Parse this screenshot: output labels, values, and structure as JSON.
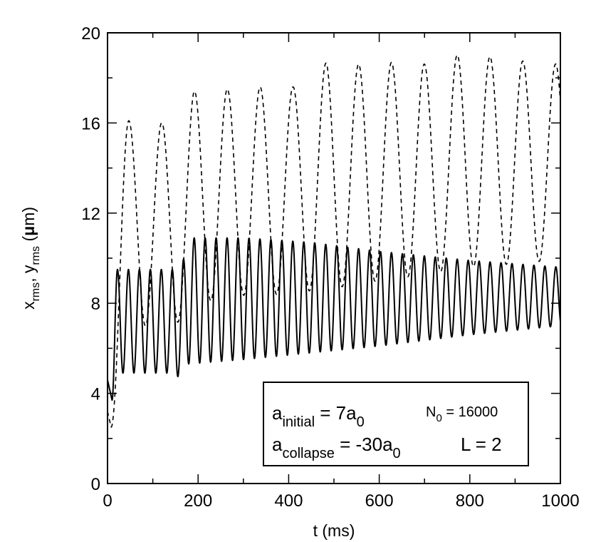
{
  "chart_data": {
    "type": "line",
    "title": "",
    "xlabel": "t (ms)",
    "ylabel": {
      "x": "x",
      "x_sub": "rms",
      "sep": ", ",
      "y": "y",
      "y_sub": "rms",
      "unit_open": " (",
      "mu": "μ",
      "unit_rest": "m)"
    },
    "xlim": [
      0,
      1000
    ],
    "ylim": [
      0,
      20
    ],
    "x_ticks": [
      0,
      200,
      400,
      600,
      800,
      1000
    ],
    "y_ticks": [
      0,
      4,
      8,
      12,
      16,
      20
    ],
    "x_minor_step": 100,
    "y_minor_step": 2,
    "grid": false,
    "legend_box": {
      "line1": {
        "a": "a",
        "sub1": "initial",
        "eq": " = 7a",
        "sub2": "0",
        "n": "N",
        "n_sub": "0",
        "n_eq": " = 16000"
      },
      "line2": {
        "a": "a",
        "sub1": "collapse",
        "eq": " = -30a",
        "sub2": "0",
        "l": "L = 2"
      },
      "placement": "bottom-right"
    },
    "series": [
      {
        "name": "x_rms (solid)",
        "style": "solid",
        "start": [
          0,
          4.6
        ],
        "dip": [
          10,
          3.7
        ],
        "period_ms": 24.2,
        "phase_ms": 22,
        "envelope_t": [
          22,
          150,
          160,
          175,
          300,
          450,
          600,
          800,
          1000
        ],
        "envelope_max": [
          9.5,
          9.5,
          9.0,
          10.9,
          10.9,
          10.7,
          10.3,
          9.9,
          9.6
        ],
        "envelope_min": [
          4.9,
          4.9,
          4.6,
          5.3,
          5.5,
          5.8,
          6.1,
          6.6,
          7.0
        ]
      },
      {
        "name": "y_rms (dashed)",
        "style": "dashed",
        "start": [
          0,
          3.2
        ],
        "dip": [
          8,
          2.5
        ],
        "period_ms": 72.5,
        "phase_ms": 47,
        "envelope_t": [
          47,
          120,
          190,
          265,
          340,
          410,
          485,
          560,
          635,
          710,
          785,
          860,
          935,
          1000
        ],
        "envelope_max": [
          16.1,
          16.0,
          17.4,
          17.5,
          17.6,
          17.6,
          18.7,
          18.6,
          18.7,
          18.6,
          19.1,
          18.9,
          18.7,
          18.6
        ],
        "envelope_min": [
          7.5,
          6.5,
          7.8,
          8.4,
          8.3,
          8.5,
          8.6,
          8.9,
          9.1,
          9.3,
          9.6,
          9.7,
          9.8,
          10.0
        ]
      }
    ]
  }
}
